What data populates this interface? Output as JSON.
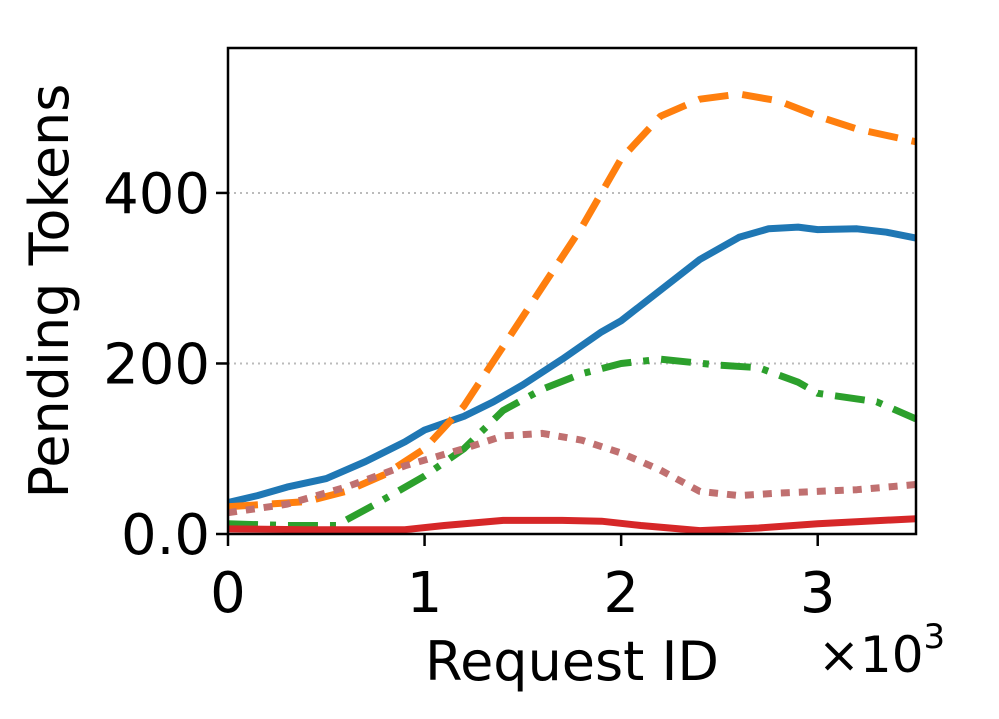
{
  "chart_data": {
    "type": "line",
    "xlabel": "Request ID",
    "ylabel": "Pending Tokens",
    "x_multiplier_label": "×10",
    "x_multiplier_exponent": "3",
    "xlim": [
      0,
      3.5
    ],
    "ylim": [
      0,
      570
    ],
    "x_ticks": [
      0,
      1,
      2,
      3
    ],
    "x_tick_labels": [
      "0",
      "1",
      "2",
      "3"
    ],
    "y_ticks": [
      0,
      200,
      400
    ],
    "y_tick_labels": [
      "0.0",
      "200",
      "400"
    ],
    "grid": "horizontal dotted",
    "series": [
      {
        "color": "#1f77b4",
        "style": "solid",
        "x": [
          0,
          0.15,
          0.3,
          0.5,
          0.7,
          0.9,
          1.0,
          1.1,
          1.2,
          1.35,
          1.5,
          1.7,
          1.9,
          2.0,
          2.1,
          2.25,
          2.4,
          2.6,
          2.75,
          2.9,
          3.0,
          3.2,
          3.35,
          3.5
        ],
        "y": [
          37,
          45,
          55,
          65,
          85,
          108,
          122,
          130,
          138,
          155,
          175,
          205,
          237,
          250,
          268,
          295,
          322,
          348,
          358,
          360,
          357,
          358,
          354,
          347
        ]
      },
      {
        "color": "#ff7f0e",
        "style": "dashed",
        "x": [
          0,
          0.2,
          0.4,
          0.6,
          0.8,
          1.0,
          1.2,
          1.4,
          1.6,
          1.8,
          2.0,
          2.2,
          2.4,
          2.6,
          2.8,
          3.0,
          3.2,
          3.5
        ],
        "y": [
          32,
          35,
          38,
          50,
          70,
          100,
          150,
          220,
          290,
          360,
          440,
          490,
          510,
          516,
          508,
          490,
          475,
          460
        ]
      },
      {
        "color": "#2ca02c",
        "style": "dashdot",
        "x": [
          0,
          0.3,
          0.55,
          0.75,
          1.0,
          1.2,
          1.4,
          1.6,
          1.8,
          2.0,
          2.2,
          2.5,
          2.7,
          2.9,
          3.0,
          3.3,
          3.5
        ],
        "y": [
          12,
          10,
          10,
          35,
          68,
          100,
          145,
          170,
          188,
          200,
          205,
          198,
          195,
          178,
          165,
          155,
          135
        ]
      },
      {
        "color": "#c07070",
        "style": "dotted",
        "x": [
          0,
          0.3,
          0.6,
          0.9,
          1.2,
          1.4,
          1.6,
          1.8,
          2.0,
          2.2,
          2.4,
          2.6,
          2.8,
          3.0,
          3.2,
          3.5
        ],
        "y": [
          25,
          35,
          55,
          80,
          100,
          115,
          118,
          110,
          95,
          75,
          50,
          45,
          48,
          50,
          52,
          58
        ]
      },
      {
        "color": "#d62728",
        "style": "solid",
        "x": [
          0,
          0.4,
          0.9,
          1.1,
          1.4,
          1.7,
          1.9,
          2.1,
          2.4,
          2.7,
          3.0,
          3.5
        ],
        "y": [
          6,
          5,
          5,
          10,
          16,
          16,
          15,
          10,
          4,
          7,
          12,
          18
        ]
      }
    ]
  }
}
